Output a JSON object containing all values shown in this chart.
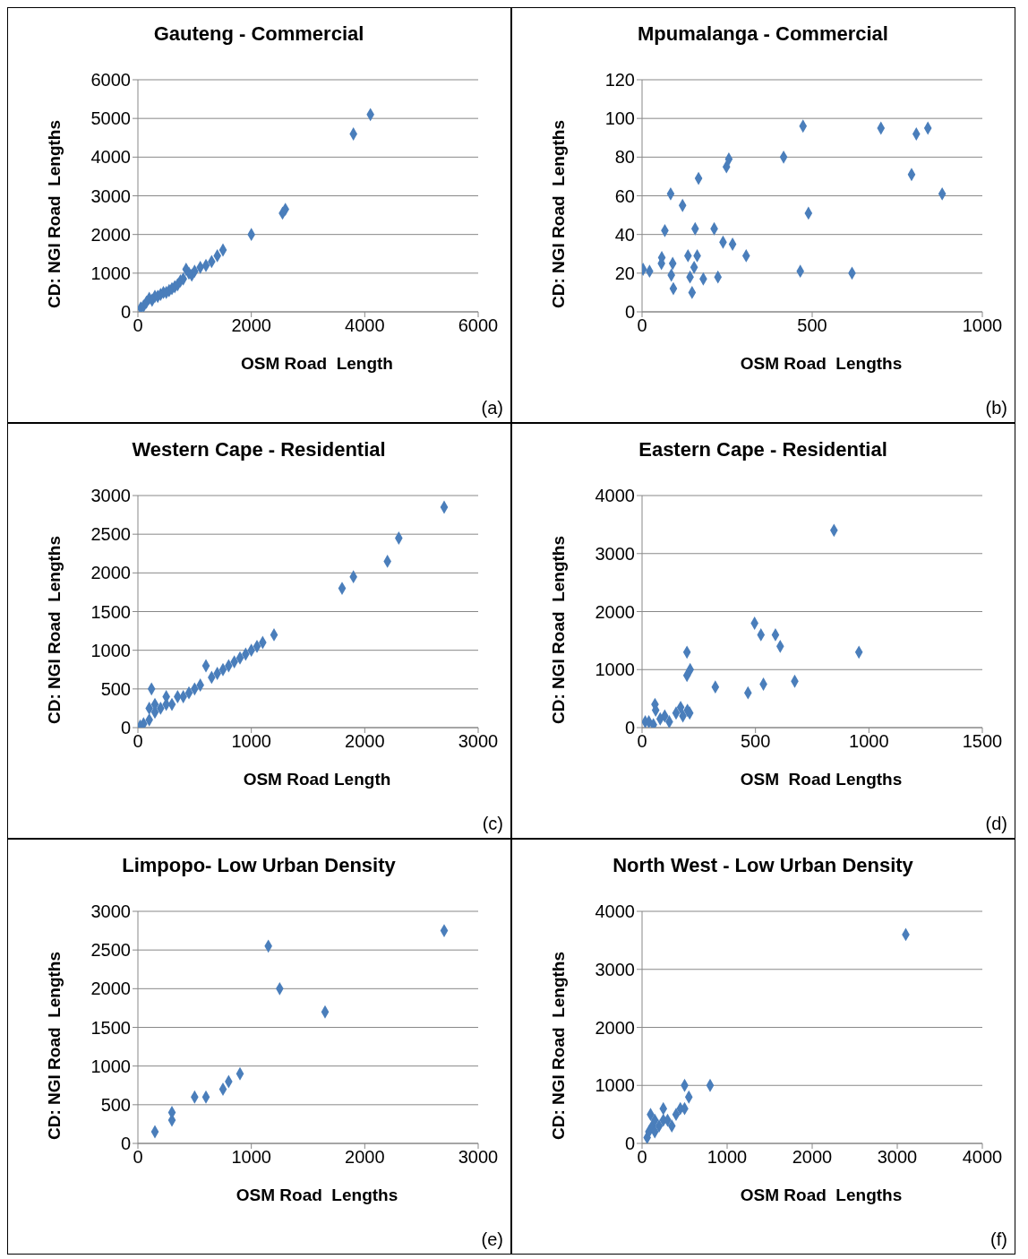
{
  "chart_data": [
    {
      "type": "scatter",
      "title": "Gauteng - Commercial",
      "xlabel": "OSM Road  Length",
      "ylabel": "CD: NGI Road  Lengths",
      "color": "#4a7ebb",
      "marker": "diamond",
      "grid": "y",
      "annotations": [
        "(a)"
      ],
      "xlim": [
        0,
        6000
      ],
      "xticks": [
        0,
        2000,
        4000,
        6000
      ],
      "ylim": [
        0,
        6000
      ],
      "yticks": [
        0,
        1000,
        2000,
        3000,
        4000,
        5000,
        6000
      ],
      "x": [
        50,
        100,
        150,
        200,
        250,
        300,
        350,
        400,
        450,
        500,
        550,
        600,
        650,
        700,
        750,
        800,
        850,
        900,
        950,
        1000,
        1100,
        1200,
        1300,
        1400,
        1500,
        2000,
        2550,
        2600,
        3800,
        4100
      ],
      "values": [
        100,
        150,
        250,
        350,
        300,
        400,
        400,
        450,
        500,
        500,
        550,
        600,
        650,
        700,
        800,
        850,
        1100,
        1000,
        950,
        1050,
        1150,
        1200,
        1300,
        1450,
        1600,
        2000,
        2550,
        2650,
        4600,
        5100
      ]
    },
    {
      "type": "scatter",
      "title": "Mpumalanga - Commercial",
      "xlabel": "OSM Road  Lengths",
      "ylabel": "CD: NGI Road  Lengths",
      "color": "#4a7ebb",
      "marker": "diamond",
      "grid": "y",
      "annotations": [
        "(b)"
      ],
      "xlim": [
        0,
        1000
      ],
      "xticks": [
        0,
        500,
        1000
      ],
      "ylim": [
        0,
        120
      ],
      "yticks": [
        0,
        20,
        40,
        60,
        80,
        100,
        120
      ],
      "x": [
        3,
        22,
        58,
        57,
        90,
        86,
        92,
        67,
        84,
        119,
        166,
        156,
        135,
        162,
        141,
        147,
        180,
        153,
        212,
        238,
        266,
        306,
        223,
        248,
        255,
        416,
        473,
        465,
        489,
        617,
        702,
        792,
        806,
        840,
        882
      ],
      "values": [
        22,
        21,
        28,
        25,
        25,
        19,
        12,
        42,
        61,
        55,
        69,
        43,
        29,
        29,
        18,
        10,
        17,
        23,
        43,
        36,
        35,
        29,
        18,
        75,
        79,
        80,
        96,
        21,
        51,
        20,
        95,
        71,
        92,
        95,
        61
      ]
    },
    {
      "type": "scatter",
      "title": "Western Cape - Residential",
      "xlabel": "OSM Road Length",
      "ylabel": "CD: NGI Road  Lengths",
      "color": "#4a7ebb",
      "marker": "diamond",
      "grid": "y",
      "annotations": [
        "(c)"
      ],
      "xlim": [
        0,
        3000
      ],
      "xticks": [
        0,
        1000,
        2000,
        3000
      ],
      "ylim": [
        0,
        3000
      ],
      "yticks": [
        0,
        500,
        1000,
        1500,
        2000,
        2500,
        3000
      ],
      "x": [
        20,
        50,
        100,
        150,
        200,
        250,
        300,
        350,
        400,
        450,
        500,
        550,
        650,
        700,
        750,
        800,
        850,
        900,
        950,
        1000,
        1050,
        1100,
        150,
        250,
        100,
        120,
        600,
        1200,
        1800,
        1900,
        2200,
        2300,
        2700
      ],
      "values": [
        20,
        50,
        100,
        200,
        250,
        300,
        300,
        400,
        400,
        450,
        500,
        550,
        650,
        700,
        750,
        800,
        850,
        900,
        950,
        1000,
        1050,
        1100,
        300,
        400,
        250,
        500,
        800,
        1200,
        1800,
        1950,
        2150,
        2450,
        2850
      ]
    },
    {
      "type": "scatter",
      "title": "Eastern Cape - Residential",
      "xlabel": "OSM  Road Lengths",
      "ylabel": "CD: NGI Road  Lengths",
      "color": "#4a7ebb",
      "marker": "diamond",
      "grid": "y",
      "annotations": [
        "(d)"
      ],
      "xlim": [
        0,
        1500
      ],
      "xticks": [
        0,
        500,
        1000,
        1500
      ],
      "ylim": [
        0,
        4000
      ],
      "yticks": [
        0,
        1000,
        2000,
        3000,
        4000
      ],
      "x": [
        14,
        30,
        50,
        57,
        60,
        80,
        100,
        120,
        150,
        170,
        180,
        200,
        210,
        198,
        212,
        198,
        323,
        467,
        535,
        673,
        496,
        524,
        588,
        609,
        956,
        846
      ],
      "values": [
        100,
        100,
        50,
        400,
        300,
        150,
        200,
        100,
        250,
        350,
        200,
        300,
        250,
        1300,
        1000,
        900,
        700,
        600,
        750,
        800,
        1800,
        1600,
        1600,
        1400,
        1300,
        3400
      ]
    },
    {
      "type": "scatter",
      "title": "Limpopo- Low Urban Density",
      "xlabel": "OSM Road  Lengths",
      "ylabel": "CD: NGI Road  Lengths",
      "color": "#4a7ebb",
      "marker": "diamond",
      "grid": "y",
      "annotations": [
        "(e)"
      ],
      "xlim": [
        0,
        3000
      ],
      "xticks": [
        0,
        1000,
        2000,
        3000
      ],
      "ylim": [
        0,
        3000
      ],
      "yticks": [
        0,
        500,
        1000,
        1500,
        2000,
        2500,
        3000
      ],
      "x": [
        150,
        300,
        300,
        500,
        600,
        750,
        800,
        900,
        1150,
        1250,
        1650,
        2700
      ],
      "values": [
        150,
        400,
        300,
        600,
        600,
        700,
        800,
        900,
        2550,
        2000,
        1700,
        2750
      ]
    },
    {
      "type": "scatter",
      "title": "North West - Low Urban Density",
      "xlabel": "OSM Road  Lengths",
      "ylabel": "CD: NGI Road  Lengths",
      "color": "#4a7ebb",
      "marker": "diamond",
      "grid": "y",
      "annotations": [
        "(f)"
      ],
      "xlim": [
        0,
        4000
      ],
      "xticks": [
        0,
        1000,
        2000,
        3000,
        4000
      ],
      "ylim": [
        0,
        4000
      ],
      "yticks": [
        0,
        1000,
        2000,
        3000,
        4000
      ],
      "x": [
        60,
        80,
        100,
        120,
        150,
        150,
        200,
        250,
        250,
        300,
        350,
        400,
        450,
        500,
        550,
        500,
        800,
        3100
      ],
      "values": [
        100,
        200,
        500,
        300,
        400,
        200,
        300,
        600,
        400,
        400,
        300,
        500,
        600,
        600,
        800,
        1000,
        1000,
        3600
      ]
    }
  ]
}
